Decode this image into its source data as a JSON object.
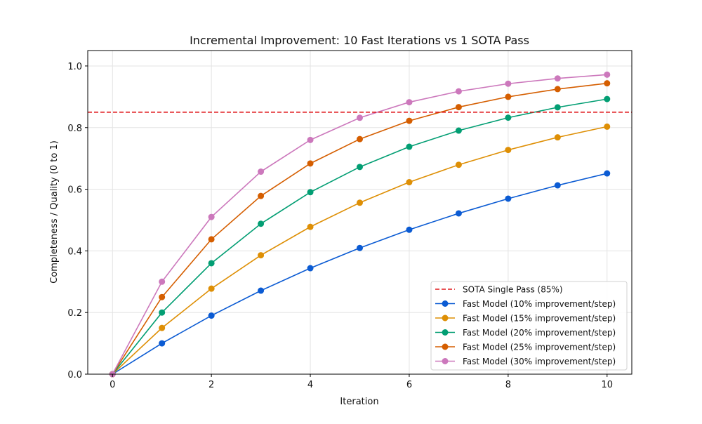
{
  "chart_data": {
    "type": "line",
    "title": "Incremental Improvement: 10 Fast Iterations vs 1 SOTA Pass",
    "xlabel": "Iteration",
    "ylabel": "Completeness / Quality (0 to 1)",
    "xlim": [
      -0.5,
      10.5
    ],
    "ylim": [
      0,
      1.05
    ],
    "xticks": [
      0,
      2,
      4,
      6,
      8,
      10
    ],
    "yticks": [
      0.0,
      0.2,
      0.4,
      0.6,
      0.8,
      1.0
    ],
    "ytick_labels": [
      "0.0",
      "0.2",
      "0.4",
      "0.6",
      "0.8",
      "1.0"
    ],
    "grid": true,
    "legend_placement": "lower-right",
    "x": [
      0,
      1,
      2,
      3,
      4,
      5,
      6,
      7,
      8,
      9,
      10
    ],
    "reference_line": {
      "name": "SOTA Single Pass (85%)",
      "y": 0.85,
      "color": "#e0191c",
      "style": "dashed"
    },
    "series": [
      {
        "name": "Fast Model (10% improvement/step)",
        "color": "#0b5bd3",
        "values": [
          0,
          0.1,
          0.19,
          0.271,
          0.3439,
          0.4095,
          0.4686,
          0.5217,
          0.5695,
          0.6126,
          0.6513
        ]
      },
      {
        "name": "Fast Model (15% improvement/step)",
        "color": "#de8f05",
        "values": [
          0,
          0.15,
          0.2775,
          0.3859,
          0.478,
          0.5563,
          0.6229,
          0.6794,
          0.7275,
          0.7684,
          0.8031
        ]
      },
      {
        "name": "Fast Model (20% improvement/step)",
        "color": "#029e73",
        "values": [
          0,
          0.2,
          0.36,
          0.488,
          0.5904,
          0.6723,
          0.7379,
          0.7903,
          0.8322,
          0.8658,
          0.8926
        ]
      },
      {
        "name": "Fast Model (25% improvement/step)",
        "color": "#d55e00",
        "values": [
          0,
          0.25,
          0.4375,
          0.5781,
          0.6836,
          0.7627,
          0.822,
          0.8665,
          0.8999,
          0.9249,
          0.9437
        ]
      },
      {
        "name": "Fast Model (30% improvement/step)",
        "color": "#cc78bc",
        "values": [
          0,
          0.3,
          0.51,
          0.657,
          0.7599,
          0.8319,
          0.8824,
          0.9176,
          0.9424,
          0.9596,
          0.9718
        ]
      }
    ]
  }
}
